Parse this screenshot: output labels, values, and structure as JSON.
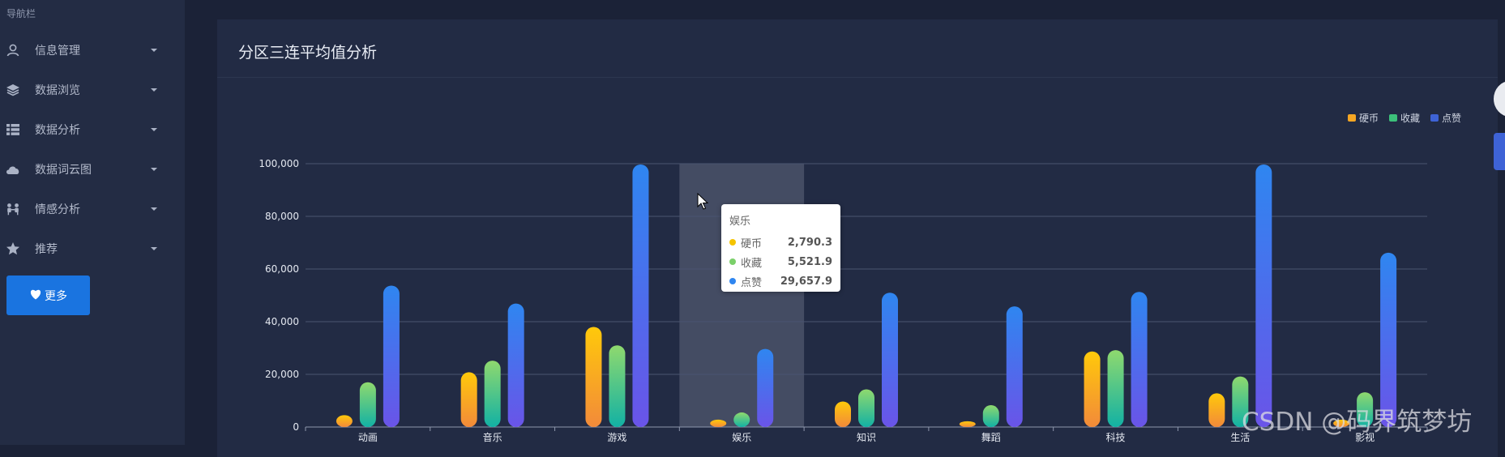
{
  "sidebar": {
    "heading": "导航栏",
    "items": [
      {
        "label": "信息管理",
        "icon": "user-icon"
      },
      {
        "label": "数据浏览",
        "icon": "layers-icon"
      },
      {
        "label": "数据分析",
        "icon": "list-icon"
      },
      {
        "label": "数据词云图",
        "icon": "cloud-icon"
      },
      {
        "label": "情感分析",
        "icon": "people-icon"
      },
      {
        "label": "推荐",
        "icon": "star-icon"
      }
    ],
    "more_button": {
      "label": "更多",
      "icon": "heart-icon"
    }
  },
  "panel": {
    "title": "分区三连平均值分析"
  },
  "colors": {
    "coin": "#f5a623",
    "collect": "#3cc07a",
    "like": "#3e63d6",
    "highlight": "#4a5268"
  },
  "chart_data": {
    "type": "bar",
    "title": "分区三连平均值分析",
    "categories": [
      "动画",
      "音乐",
      "游戏",
      "娱乐",
      "知识",
      "舞蹈",
      "科技",
      "生活",
      "影视"
    ],
    "series": [
      {
        "name": "硬币",
        "values": [
          4500,
          20800,
          38000,
          2790.3,
          9700,
          2200,
          28700,
          12800,
          2800
        ]
      },
      {
        "name": "收藏",
        "values": [
          17000,
          25200,
          31000,
          5521.9,
          14300,
          8300,
          29200,
          19200,
          13200
        ]
      },
      {
        "name": "点赞",
        "values": [
          53700,
          46900,
          99700,
          29657.9,
          51000,
          45800,
          51300,
          99700,
          66200
        ]
      }
    ],
    "ylim": [
      0,
      100000
    ],
    "yticks": [
      "0",
      "20,000",
      "40,000",
      "60,000",
      "80,000",
      "100,000"
    ],
    "legend_position": "top-right",
    "grid": true,
    "highlighted_category": "娱乐"
  },
  "tooltip": {
    "title": "娱乐",
    "rows": [
      {
        "name": "硬币",
        "value": "2,790.3",
        "color": "#f5c400"
      },
      {
        "name": "收藏",
        "value": "5,521.9",
        "color": "#7bd06a"
      },
      {
        "name": "点赞",
        "value": "29,657.9",
        "color": "#2f86f0"
      }
    ]
  },
  "watermark": "CSDN @码界筑梦坊"
}
